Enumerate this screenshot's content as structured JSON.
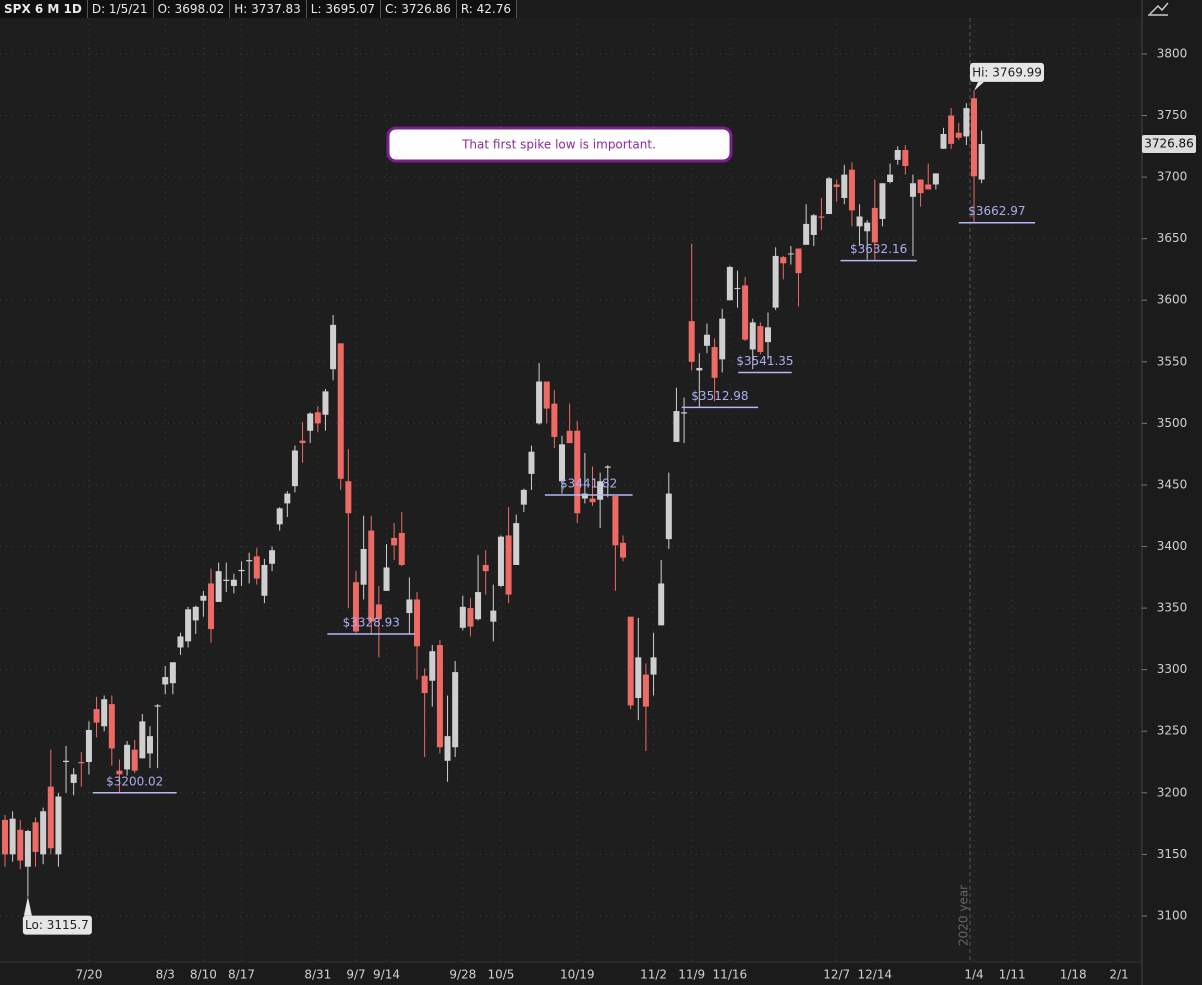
{
  "header": {
    "symbol": "SPX 6 M 1D",
    "date": "D: 1/5/21",
    "open": "O: 3698.02",
    "high": "H: 3737.83",
    "low": "L: 3695.07",
    "close": "C: 3726.86",
    "range": "R: 42.76"
  },
  "chart_data": {
    "type": "candlestick",
    "categories": [
      null,
      null,
      null,
      null,
      null,
      null,
      null,
      null,
      null,
      null,
      null,
      "7/20",
      null,
      null,
      null,
      null,
      null,
      null,
      null,
      null,
      null,
      "8/3",
      null,
      null,
      null,
      null,
      "8/10",
      null,
      null,
      null,
      null,
      "8/17",
      null,
      null,
      null,
      null,
      null,
      null,
      null,
      null,
      null,
      "8/31",
      null,
      null,
      null,
      null,
      "9/7",
      null,
      null,
      null,
      "9/14",
      null,
      null,
      null,
      null,
      null,
      null,
      null,
      null,
      null,
      "9/28",
      null,
      null,
      null,
      null,
      "10/5",
      null,
      null,
      null,
      null,
      null,
      null,
      null,
      null,
      null,
      "10/19",
      null,
      null,
      null,
      null,
      null,
      null,
      null,
      null,
      null,
      "11/2",
      null,
      null,
      null,
      null,
      "11/9",
      null,
      null,
      null,
      null,
      "11/16",
      null,
      null,
      null,
      null,
      null,
      null,
      null,
      null,
      null,
      null,
      null,
      null,
      null,
      "12/7",
      null,
      null,
      null,
      null,
      "12/14",
      null,
      null,
      null,
      null,
      null,
      null,
      null,
      null,
      null,
      null,
      null,
      null,
      "1/4",
      null,
      null,
      null,
      null,
      "1/11",
      null,
      null,
      null,
      null,
      null,
      null,
      null,
      "1/18",
      null,
      null,
      null,
      null,
      null,
      "2/1"
    ],
    "open": [
      3178,
      3150,
      3170,
      3140,
      3176,
      3150,
      3205,
      3150,
      3225,
      3208,
      3225,
      3225,
      3268,
      3254,
      3272,
      3218,
      3219,
      3235,
      3228,
      3232,
      3270,
      3288,
      3289,
      3318,
      3323,
      3340,
      3356,
      3370,
      3355,
      3372,
      3368,
      3380,
      3388,
      3392,
      3360,
      3386,
      3418,
      3435,
      3449,
      3486,
      3494,
      3509,
      3507,
      3544,
      3565,
      3453,
      3371,
      3369,
      3413,
      3353,
      3364,
      3407,
      3411,
      3346,
      3357,
      3295,
      3291,
      3320,
      3226,
      3237,
      3334,
      3350,
      3341,
      3385,
      3339,
      3368,
      3409,
      3385,
      3434,
      3459,
      3500,
      3534,
      3516,
      3453,
      3494,
      3494,
      3439,
      3439,
      3438,
      3464,
      3441,
      3403,
      3343,
      3277,
      3296,
      3296,
      3336,
      3406,
      3485,
      3508,
      3583,
      3543,
      3563,
      3562,
      3552,
      3600,
      3610,
      3612,
      3560,
      3579,
      3566,
      3594,
      3635,
      3638,
      3642,
      3645,
      3653,
      3668,
      3670,
      3694,
      3683,
      3706,
      3660,
      3656,
      3675,
      3666,
      3696,
      3714,
      3722,
      3684,
      3698,
      3694,
      3694,
      3723,
      3750,
      3736,
      3733,
      3764,
      3698.02,
      null,
      null,
      null,
      null,
      null,
      null,
      null,
      null,
      null,
      null,
      null,
      null,
      null,
      null,
      null,
      null,
      null,
      null
    ],
    "high": [
      3182,
      3185,
      3178,
      3170,
      3180,
      3188,
      3235,
      3200,
      3238,
      3220,
      3233,
      3258,
      3278,
      3279,
      3279,
      3227,
      3242,
      3243,
      3264,
      3254,
      3272,
      3303,
      3306,
      3330,
      3351,
      3352,
      3364,
      3382,
      3387,
      3387,
      3378,
      3388,
      3395,
      3399,
      3390,
      3400,
      3432,
      3445,
      3482,
      3501,
      3509,
      3514,
      3528,
      3588,
      3565,
      3479,
      3380,
      3425,
      3425,
      3368,
      3402,
      3419,
      3428,
      3375,
      3363,
      3301,
      3320,
      3324,
      3279,
      3307,
      3360,
      3358,
      3393,
      3397,
      3369,
      3409,
      3432,
      3426,
      3447,
      3482,
      3549,
      3534,
      3527,
      3490,
      3516,
      3502,
      3476,
      3465,
      3460,
      3466,
      3441,
      3409,
      3343,
      3342,
      3305,
      3330,
      3389,
      3460,
      3529,
      3521,
      3646,
      3557,
      3581,
      3569,
      3593,
      3628,
      3624,
      3619,
      3585,
      3582,
      3590,
      3643,
      3636,
      3644,
      3642,
      3678,
      3670,
      3683,
      3700,
      3698,
      3710,
      3712,
      3678,
      3665,
      3698,
      3695,
      3711,
      3725,
      3726,
      3702,
      3698,
      3711,
      3703,
      3740,
      3756,
      3744,
      3760,
      3769.99,
      3737.83,
      null,
      null,
      null,
      null,
      null,
      null,
      null,
      null,
      null,
      null,
      null,
      null,
      null,
      null,
      null,
      null,
      null,
      null
    ],
    "low": [
      3140,
      3144,
      3138,
      3115.7,
      3140,
      3142,
      3150,
      3140,
      3200,
      3198,
      3205,
      3215,
      3245,
      3250,
      3222,
      3200.02,
      3214,
      3216,
      3228,
      3220,
      3220,
      3280,
      3280,
      3312,
      3318,
      3329,
      3343,
      3322,
      3355,
      3363,
      3362,
      3368,
      3370,
      3369,
      3354,
      3380,
      3413,
      3424,
      3444,
      3468,
      3484,
      3493,
      3494,
      3535,
      3446,
      3350,
      3330,
      3357,
      3329,
      3310,
      3364,
      3389,
      3384,
      3328.93,
      3292,
      3229,
      3270,
      3232,
      3209,
      3229,
      3332,
      3327,
      3340,
      3361,
      3323,
      3367,
      3354,
      3385,
      3428,
      3446,
      3499,
      3500,
      3480,
      3443,
      3484,
      3419,
      3435,
      3433,
      3415,
      3440,
      3364,
      3388,
      3268,
      3259,
      3234,
      3279,
      3336,
      3398,
      3485,
      3484,
      3543,
      3512.98,
      3557,
      3518,
      3541.35,
      3600,
      3594,
      3567,
      3544,
      3556,
      3552,
      3592,
      3617,
      3629,
      3595,
      3645,
      3644,
      3657,
      3670,
      3680,
      3678,
      3660,
      3644,
      3633,
      3632.16,
      3660,
      3695,
      3710,
      3702,
      3636,
      3676,
      3690,
      3690,
      3723,
      3723,
      3730,
      3726,
      3662.97,
      3695.07,
      null,
      null,
      null,
      null,
      null,
      null,
      null,
      null,
      null,
      null,
      null,
      null,
      null,
      null,
      null,
      null,
      null,
      null
    ],
    "close": [
      3150,
      3179,
      3145,
      3169,
      3152,
      3185,
      3155,
      3197,
      3226,
      3215,
      3224,
      3251,
      3257,
      3276,
      3236,
      3215,
      3239,
      3218,
      3258,
      3246,
      3271,
      3294,
      3306,
      3327,
      3349,
      3351,
      3360,
      3333,
      3380,
      3373,
      3373,
      3381,
      3389,
      3374,
      3385,
      3397,
      3431,
      3443,
      3478,
      3484,
      3508,
      3500,
      3526,
      3580,
      3455,
      3427,
      3331,
      3398,
      3339,
      3341,
      3383,
      3401,
      3385,
      3357,
      3319,
      3281,
      3315,
      3237,
      3246,
      3298,
      3351,
      3335,
      3363,
      3380,
      3348,
      3408,
      3361,
      3419,
      3446,
      3477,
      3534,
      3512,
      3489,
      3483,
      3484,
      3427,
      3443,
      3436,
      3453,
      3465,
      3401,
      3391,
      3271,
      3310,
      3270,
      3310,
      3370,
      3443,
      3510,
      3509,
      3550,
      3545,
      3572,
      3537,
      3585,
      3627,
      3610,
      3568,
      3582,
      3558,
      3578,
      3636,
      3630,
      3638,
      3622,
      3662,
      3669,
      3667,
      3699,
      3692,
      3702,
      3673,
      3668,
      3663,
      3647,
      3695,
      3702,
      3722,
      3709,
      3695,
      3687,
      3690,
      3703,
      3735,
      3727,
      3732,
      3756,
      3700.65,
      3726.86,
      null,
      null,
      null,
      null,
      null,
      null,
      null,
      null,
      null,
      null,
      null,
      null,
      null,
      null,
      null,
      null,
      null,
      null
    ],
    "up_color": "#cfcfcf",
    "down_color": "#ee6a65",
    "ylim": [
      3062.6,
      3829.2
    ],
    "yticks": [
      3100,
      3150,
      3200,
      3250,
      3300,
      3350,
      3400,
      3450,
      3500,
      3550,
      3600,
      3650,
      3700,
      3750,
      3800
    ],
    "grid": true,
    "hi_label": "Hi: 3769.99",
    "lo_label": "Lo: 3115.7",
    "levels": [
      {
        "value": 3200.02,
        "label": "$3200.02"
      },
      {
        "value": 3328.93,
        "label": "$3328.93"
      },
      {
        "value": 3441.82,
        "label": "$3441.82"
      },
      {
        "value": 3512.98,
        "label": "$3512.98"
      },
      {
        "value": 3541.35,
        "label": "$3541.35"
      },
      {
        "value": 3632.16,
        "label": "$3632.16"
      },
      {
        "value": 3662.97,
        "label": "$3662.97"
      }
    ],
    "annotation": "That first spike low is important.",
    "year_label": "2020 year"
  }
}
